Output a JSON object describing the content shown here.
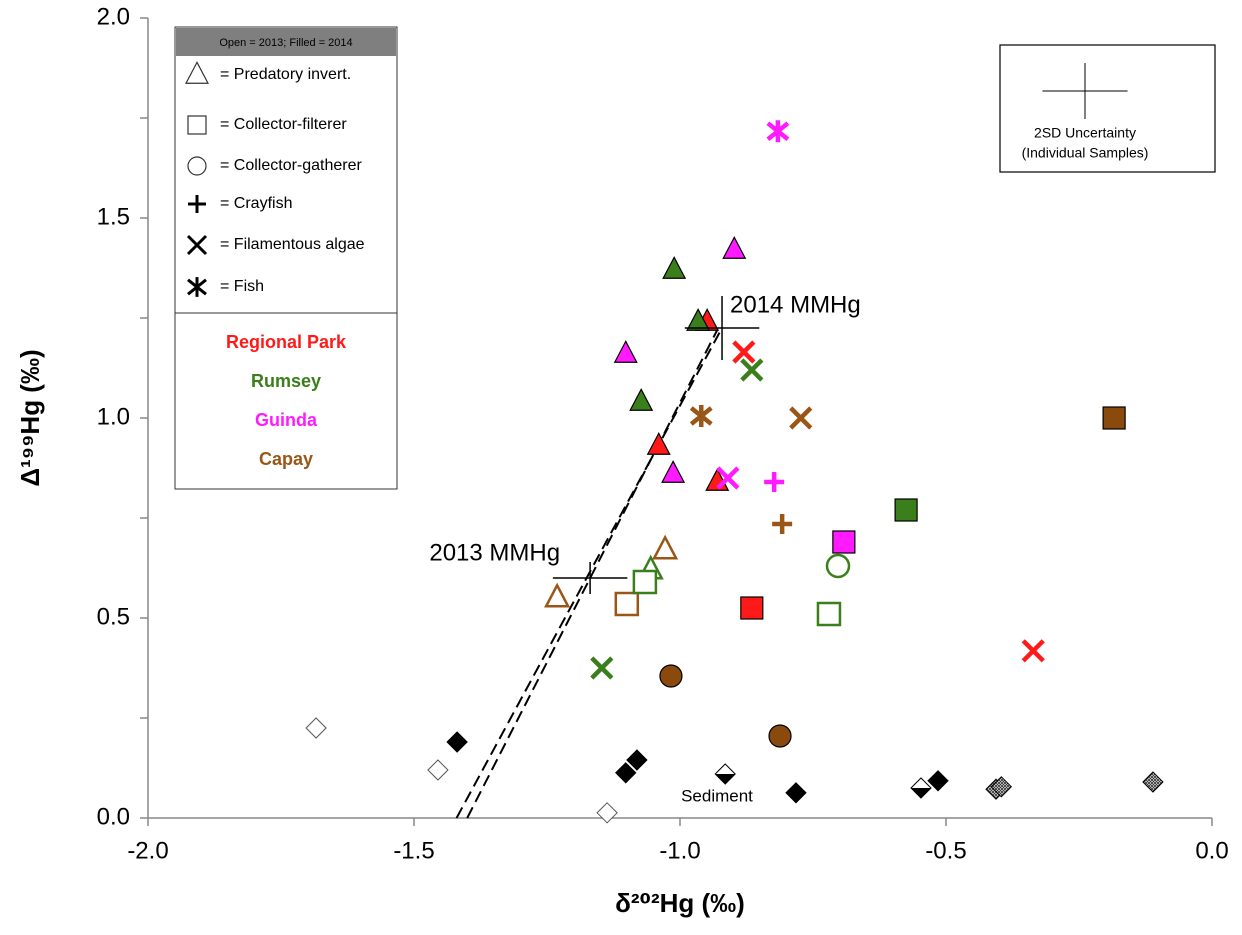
{
  "chart_data": {
    "type": "scatter",
    "xlabel": "δ²⁰²Hg (‰)",
    "ylabel": "Δ¹⁹⁹Hg (‰)",
    "xlim": [
      -2.0,
      0.0
    ],
    "ylim": [
      0.0,
      2.0
    ],
    "xticks": [
      {
        "value": -2.0,
        "label": "-2.0"
      },
      {
        "value": -1.5,
        "label": "-1.5"
      },
      {
        "value": -1.0,
        "label": "-1.0"
      },
      {
        "value": -0.5,
        "label": "-0.5"
      },
      {
        "value": 0.0,
        "label": "0.0"
      }
    ],
    "yticks": [
      {
        "value": 0.0,
        "label": "0.0"
      },
      {
        "value": 0.5,
        "label": "0.5"
      },
      {
        "value": 1.0,
        "label": "1.0"
      },
      {
        "value": 1.5,
        "label": "1.5"
      },
      {
        "value": 2.0,
        "label": "2.0"
      }
    ],
    "yminorticks": [
      0.25,
      0.75,
      1.25,
      1.75
    ],
    "legend": {
      "header": "Open = 2013; Filled = 2014",
      "symbols": [
        {
          "marker": "triangle",
          "label": "= Predatory invert."
        },
        {
          "marker": "square",
          "label": "= Collector-filterer"
        },
        {
          "marker": "circle",
          "label": "= Collector-gatherer"
        },
        {
          "marker": "plus",
          "label": "= Crayfish"
        },
        {
          "marker": "x",
          "label": "= Filamentous algae"
        },
        {
          "marker": "asterisk",
          "label": "= Fish"
        }
      ],
      "sites": [
        {
          "name": "Regional Park",
          "color": "#ff1a1a"
        },
        {
          "name": "Rumsey",
          "color": "#3a7f1c"
        },
        {
          "name": "Guinda",
          "color": "#ff1aff"
        },
        {
          "name": "Capay",
          "color": "#9a5616"
        }
      ]
    },
    "series": [
      {
        "marker": "triangle",
        "filled": true,
        "color": "#ff1a1a",
        "x": [
          -0.949,
          -1.04,
          -0.93
        ],
        "y": [
          1.24,
          0.93,
          0.84
        ]
      },
      {
        "marker": "triangle",
        "filled": true,
        "color": "#3a7f1c",
        "x": [
          -1.011,
          -0.966,
          -1.073
        ],
        "y": [
          1.37,
          1.24,
          1.04
        ]
      },
      {
        "marker": "triangle",
        "filled": true,
        "color": "#ff1aff",
        "x": [
          -0.898,
          -1.102,
          -1.013
        ],
        "y": [
          1.42,
          1.16,
          0.86
        ]
      },
      {
        "marker": "triangle",
        "filled": false,
        "color": "#9a5616",
        "x": [
          -1.028,
          -1.231
        ],
        "y": [
          0.67,
          0.55
        ]
      },
      {
        "marker": "triangle",
        "filled": false,
        "color": "#3a7f1c",
        "x": [
          -1.055
        ],
        "y": [
          0.62
        ]
      },
      {
        "marker": "square",
        "filled": false,
        "color": "#9a5616",
        "x": [
          -1.1
        ],
        "y": [
          0.535
        ]
      },
      {
        "marker": "square",
        "filled": false,
        "color": "#3a7f1c",
        "x": [
          -1.066,
          -0.72
        ],
        "y": [
          0.59,
          0.51
        ]
      },
      {
        "marker": "square",
        "filled": true,
        "color": "#ff1a1a",
        "x": [
          -0.865
        ],
        "y": [
          0.525
        ]
      },
      {
        "marker": "square",
        "filled": true,
        "color": "#3a7f1c",
        "x": [
          -0.575
        ],
        "y": [
          0.77
        ]
      },
      {
        "marker": "square",
        "filled": true,
        "color": "#ff1aff",
        "x": [
          -0.692
        ],
        "y": [
          0.69
        ]
      },
      {
        "marker": "square",
        "filled": true,
        "color": "#8a4a0e",
        "x": [
          -0.184
        ],
        "y": [
          1.0
        ]
      },
      {
        "marker": "circle",
        "filled": false,
        "color": "#3a7f1c",
        "x": [
          -0.703
        ],
        "y": [
          0.63
        ]
      },
      {
        "marker": "circle",
        "filled": true,
        "color": "#8a4a0e",
        "x": [
          -1.017,
          -0.812
        ],
        "y": [
          0.355,
          0.205
        ]
      },
      {
        "marker": "plus",
        "filled": true,
        "color": "#ff1aff",
        "x": [
          -0.823
        ],
        "y": [
          0.84
        ]
      },
      {
        "marker": "plus",
        "filled": true,
        "color": "#9a5616",
        "x": [
          -0.808
        ],
        "y": [
          0.735
        ]
      },
      {
        "marker": "x",
        "filled": true,
        "color": "#ff1a1a",
        "x": [
          -0.88,
          -0.336
        ],
        "y": [
          1.165,
          0.418
        ]
      },
      {
        "marker": "x",
        "filled": true,
        "color": "#3a7f1c",
        "x": [
          -0.865,
          -1.147
        ],
        "y": [
          1.12,
          0.375
        ]
      },
      {
        "marker": "x",
        "filled": true,
        "color": "#9a5616",
        "x": [
          -0.773
        ],
        "y": [
          1.0
        ]
      },
      {
        "marker": "x",
        "filled": true,
        "color": "#ff1aff",
        "x": [
          -0.91
        ],
        "y": [
          0.85
        ]
      },
      {
        "marker": "asterisk",
        "filled": true,
        "color": "#ff1aff",
        "x": [
          -0.816
        ],
        "y": [
          1.717
        ]
      },
      {
        "marker": "asterisk",
        "filled": true,
        "color": "#9a5616",
        "x": [
          -0.96
        ],
        "y": [
          1.005
        ]
      },
      {
        "marker": "diamond",
        "filled": false,
        "color": "#000000",
        "x": [
          -1.684,
          -1.455,
          -1.137
        ],
        "y": [
          0.225,
          0.12,
          0.013
        ]
      },
      {
        "marker": "diamond",
        "filled": true,
        "color": "#000000",
        "x": [
          -1.419,
          -1.102,
          -1.081,
          -0.782,
          -0.515
        ],
        "y": [
          0.19,
          0.113,
          0.145,
          0.063,
          0.093
        ]
      },
      {
        "marker": "diamond",
        "filled": true,
        "pattern": "half",
        "color": "#000000",
        "x": [
          -0.915,
          -0.547
        ],
        "y": [
          0.11,
          0.075
        ]
      },
      {
        "marker": "diamond",
        "filled": true,
        "pattern": "hatched",
        "color": "#000000",
        "x": [
          -0.406,
          -0.396,
          -0.111
        ],
        "y": [
          0.072,
          0.078,
          0.09
        ]
      }
    ],
    "mmhg": [
      {
        "label": "2014 MMHg",
        "x": -0.921,
        "y": 1.225,
        "xerr": 0.07,
        "yerr": 0.08
      },
      {
        "label": "2013 MMHg",
        "x": -1.169,
        "y": 0.6,
        "xerr": 0.07,
        "yerr": 0.04
      }
    ],
    "lines": [
      {
        "x": [
          -1.42,
          -0.921
        ],
        "y": [
          0.0,
          1.225
        ]
      },
      {
        "x": [
          -1.4,
          -0.93
        ],
        "y": [
          0.0,
          1.22
        ]
      }
    ],
    "uncertainty": {
      "line1": "2SD Uncertainty",
      "line2": "(Individual Samples)",
      "xerr": 0.08,
      "yerr": 0.07
    },
    "annotation": "Sediment"
  }
}
